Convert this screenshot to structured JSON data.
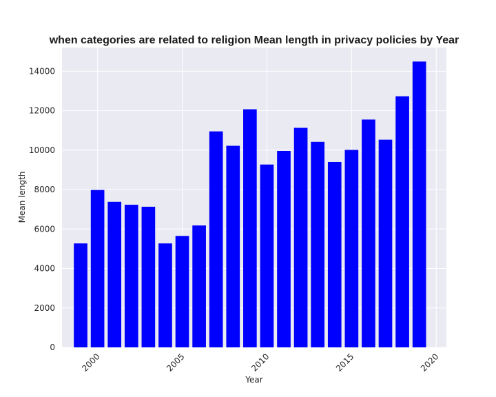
{
  "chart_data": {
    "type": "bar",
    "title": "when categories are related to religion Mean length in privacy policies by Year",
    "xlabel": "Year",
    "ylabel": "Mean length",
    "x": [
      1999,
      2000,
      2001,
      2002,
      2003,
      2004,
      2005,
      2006,
      2007,
      2008,
      2009,
      2010,
      2011,
      2012,
      2013,
      2014,
      2015,
      2016,
      2017,
      2018,
      2019
    ],
    "values": [
      5270,
      7980,
      7380,
      7230,
      7130,
      5270,
      5650,
      6180,
      10950,
      10220,
      12070,
      9270,
      9960,
      11130,
      10420,
      9400,
      10010,
      11550,
      10530,
      12730,
      14490
    ],
    "xlim": [
      1997.9,
      2020.6
    ],
    "ylim": [
      0,
      15200
    ],
    "xticks": [
      2000,
      2005,
      2010,
      2015,
      2020
    ],
    "xtick_labels": [
      "2000",
      "2005",
      "2010",
      "2015",
      "2020"
    ],
    "yticks": [
      0,
      2000,
      4000,
      6000,
      8000,
      10000,
      12000,
      14000
    ],
    "ytick_labels": [
      "0",
      "2000",
      "4000",
      "6000",
      "8000",
      "10000",
      "12000",
      "14000"
    ],
    "bar_color": "#0000ff",
    "background_color": "#eaeaf2",
    "grid_color": "#ffffff",
    "grid": true,
    "xtick_rotation": 45
  }
}
